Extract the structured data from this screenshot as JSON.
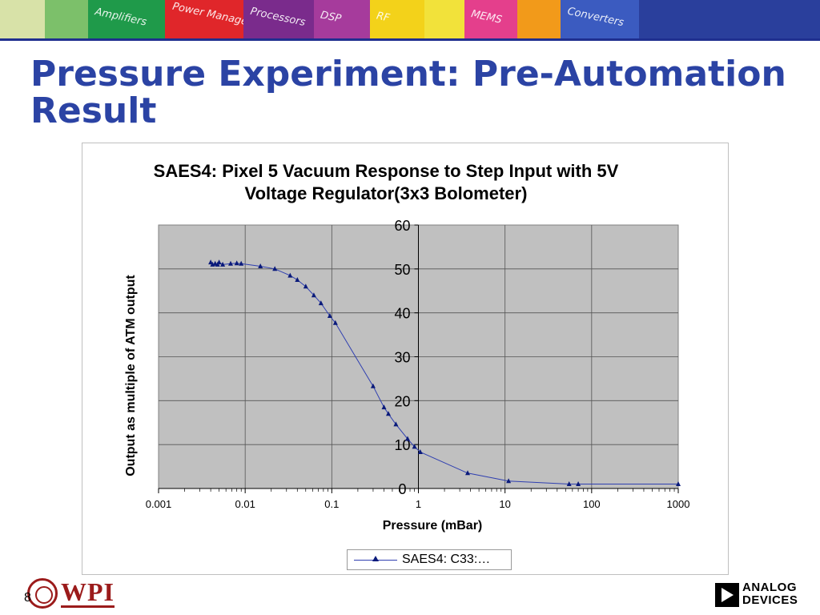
{
  "banner": {
    "tiles": [
      {
        "label": "",
        "color": "#d8e2a8"
      },
      {
        "label": "",
        "color": "#7cc06a"
      },
      {
        "label": "Amplifiers",
        "color": "#1f9a4a"
      },
      {
        "label": "Power Management",
        "color": "#e0262a"
      },
      {
        "label": "Processors",
        "color": "#7a2b8c"
      },
      {
        "label": "DSP",
        "color": "#a63b9c"
      },
      {
        "label": "RF",
        "color": "#f3d21a"
      },
      {
        "label": "",
        "color": "#f2e23a"
      },
      {
        "label": "MEMS",
        "color": "#e43f8c"
      },
      {
        "label": "",
        "color": "#f29a1a"
      },
      {
        "label": "Converters",
        "color": "#3b5bc0"
      },
      {
        "label": "",
        "color": "#2a3f9c"
      }
    ]
  },
  "slide": {
    "title": "Pressure Experiment: Pre-Automation Result",
    "number": "8"
  },
  "logos": {
    "left": "WPI",
    "right_line1": "ANALOG",
    "right_line2": "DEVICES"
  },
  "colors": {
    "title": "#2b43a4",
    "plot_area": "#c0c0c0",
    "series_line": "#2f3fb0",
    "series_marker": "#0a1a7a",
    "wpi": "#9b1b1b"
  },
  "chart_data": {
    "type": "scatter",
    "title": "SAES4: Pixel 5 Vacuum Response to Step Input with 5V Voltage Regulator(3x3 Bolometer)",
    "xlabel": "Pressure (mBar)",
    "ylabel": "Output as multiple of ATM output",
    "x_scale": "log",
    "xlim": [
      0.001,
      1000
    ],
    "ylim": [
      0,
      60
    ],
    "x_ticks": [
      "0.001",
      "0.01",
      "0.1",
      "1",
      "10",
      "100",
      "1000"
    ],
    "y_ticks": [
      "0",
      "10",
      "20",
      "30",
      "40",
      "50",
      "60"
    ],
    "grid": "major horizontal and vertical",
    "legend": "bottom",
    "series": [
      {
        "name": "SAES4: C33:…",
        "marker": "triangle",
        "x": [
          0.004,
          0.0042,
          0.0045,
          0.0048,
          0.005,
          0.0055,
          0.0068,
          0.008,
          0.009,
          0.015,
          0.022,
          0.033,
          0.04,
          0.05,
          0.062,
          0.075,
          0.095,
          0.11,
          0.3,
          0.4,
          0.45,
          0.55,
          0.75,
          0.9,
          1.05,
          3.7,
          11,
          55,
          70,
          1000
        ],
        "y": [
          51.5,
          51.0,
          51.2,
          51.0,
          51.5,
          51.0,
          51.2,
          51.3,
          51.2,
          50.6,
          50.0,
          48.5,
          47.5,
          46.0,
          44.0,
          42.2,
          39.3,
          37.7,
          23.3,
          18.5,
          17.0,
          14.6,
          11.3,
          9.5,
          8.3,
          3.5,
          1.7,
          1.0,
          1.0,
          1.0
        ]
      }
    ]
  }
}
